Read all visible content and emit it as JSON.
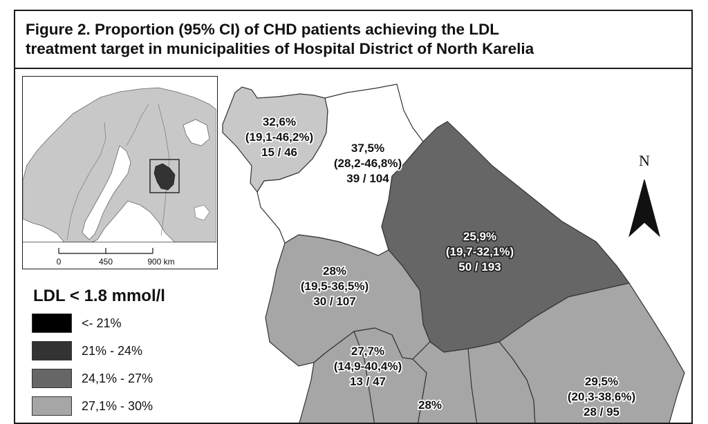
{
  "title": {
    "line1": "Figure 2. Proportion (95% CI) of CHD patients achieving the LDL",
    "line2": "treatment target in municipalities of Hospital District of North Karelia"
  },
  "legend": {
    "title": "LDL < 1.8 mmol/l",
    "items": [
      {
        "label": "<- 21%",
        "color": "#000000"
      },
      {
        "label": "21% - 24%",
        "color": "#333333"
      },
      {
        "label": "24,1% - 27%",
        "color": "#666666"
      },
      {
        "label": "27,1% - 30%",
        "color": "#a6a6a6"
      }
    ]
  },
  "inset": {
    "scale_labels": [
      "0",
      "450",
      "900 km"
    ]
  },
  "north_arrow": {
    "letter": "N"
  },
  "regions": [
    {
      "id": "nw",
      "pct": "32,6%",
      "ci": "(19,1-46,2%)",
      "count": "15 / 46",
      "fill": "#c8c8c8"
    },
    {
      "id": "north",
      "pct": "37,5%",
      "ci": "(28,2-46,8%)",
      "count": "39 / 104",
      "fill": "#ffffff"
    },
    {
      "id": "east",
      "pct": "25,9%",
      "ci": "(19,7-32,1%)",
      "count": "50 / 193",
      "fill": "#666666"
    },
    {
      "id": "west",
      "pct": "28%",
      "ci": "(19,5-36,5%)",
      "count": "30 / 107",
      "fill": "#a6a6a6"
    },
    {
      "id": "sw",
      "pct": "27,7%",
      "ci": "(14,9-40,4%)",
      "count": "13 / 47",
      "fill": "#a6a6a6"
    },
    {
      "id": "south",
      "pct": "28%",
      "ci": "",
      "count": "",
      "fill": "#a6a6a6"
    },
    {
      "id": "se",
      "pct": "29,5%",
      "ci": "(20,3-38,6%)",
      "count": "28 / 95",
      "fill": "#a6a6a6"
    }
  ]
}
